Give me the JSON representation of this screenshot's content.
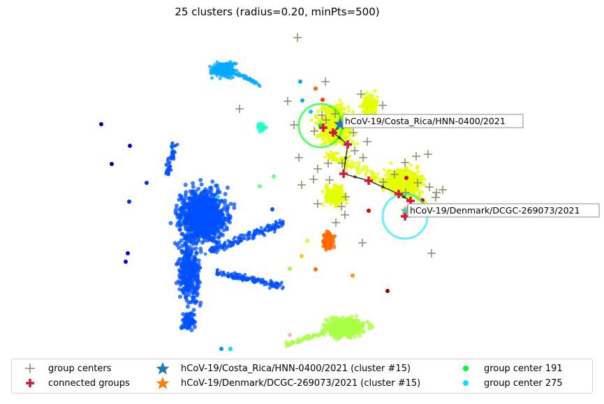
{
  "chart_data": {
    "type": "scatter",
    "title": "25 clusters (radius=0.20, minPts=500)",
    "xlabel": "",
    "ylabel": "",
    "axes_visible": false,
    "grid": false,
    "legend_position": "bottom",
    "colors": {
      "group_centers": "#8c8c6a",
      "connected_groups": "#dc143c",
      "costa_rica_star": "#1f77b4",
      "denmark_star": "#ff7f0e",
      "group_center_191": "#00ff22",
      "group_center_275": "#00e5ff",
      "path_line": "#333333"
    },
    "series": [
      {
        "name": "group centers",
        "marker": "plus"
      },
      {
        "name": "connected groups",
        "marker": "thick-plus"
      },
      {
        "name": "hCoV-19/Costa_Rica/HNN-0400/2021 (cluster #15)",
        "marker": "star"
      },
      {
        "name": "hCoV-19/Denmark/DCGC-269073/2021 (cluster #15)",
        "marker": "star"
      },
      {
        "name": "group center 191",
        "marker": "dot"
      },
      {
        "name": "group center 275",
        "marker": "dot"
      }
    ],
    "annotations": [
      {
        "text": "hCoV-19/Costa_Rica/HNN-0400/2021"
      },
      {
        "text": "hCoV-19/Denmark/DCGC-269073/2021"
      }
    ]
  }
}
